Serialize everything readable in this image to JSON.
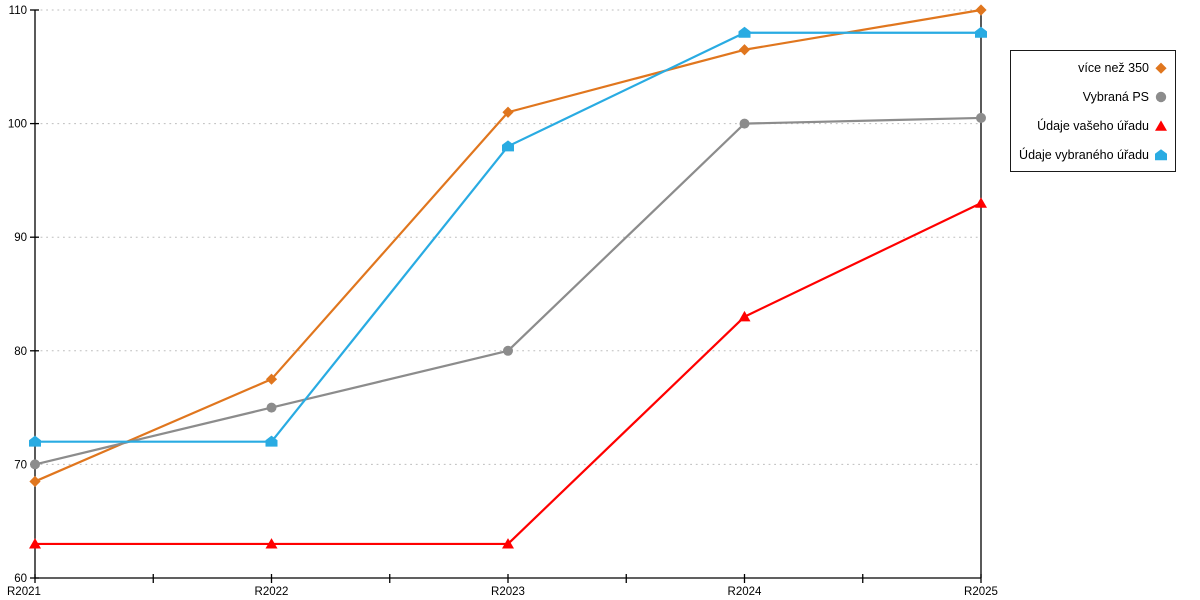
{
  "chart_data": {
    "type": "line",
    "categories": [
      "R2021",
      "R2022",
      "R2023",
      "R2024",
      "R2025"
    ],
    "series": [
      {
        "name": "více než 350",
        "color": "#E0761E",
        "marker": "diamond",
        "values": [
          68.5,
          77.5,
          101,
          106.5,
          110
        ]
      },
      {
        "name": "Vybraná PS",
        "color": "#8C8C8C",
        "marker": "circle",
        "values": [
          70,
          75,
          80,
          100,
          100.5
        ]
      },
      {
        "name": "Údaje vašeho úřadu",
        "color": "#FF0000",
        "marker": "triangle",
        "values": [
          63,
          63,
          63,
          83,
          93
        ]
      },
      {
        "name": "Údaje vybraného úřadu",
        "color": "#29ABE2",
        "marker": "pentagon",
        "values": [
          72,
          72,
          98,
          108,
          108
        ]
      }
    ],
    "title": "",
    "xlabel": "",
    "ylabel": "",
    "ylim": [
      60,
      110
    ],
    "ytick_step": 10,
    "yticks": [
      "60",
      "70",
      "80",
      "90",
      "100",
      "110"
    ],
    "grid": "horizontal-dotted",
    "grid_color": "#BDBDBD",
    "axis_color": "#000000",
    "right_border_line": true,
    "minor_x_ticks_at_midpoints": true,
    "legend_position": "right",
    "background": "#FFFFFF"
  }
}
